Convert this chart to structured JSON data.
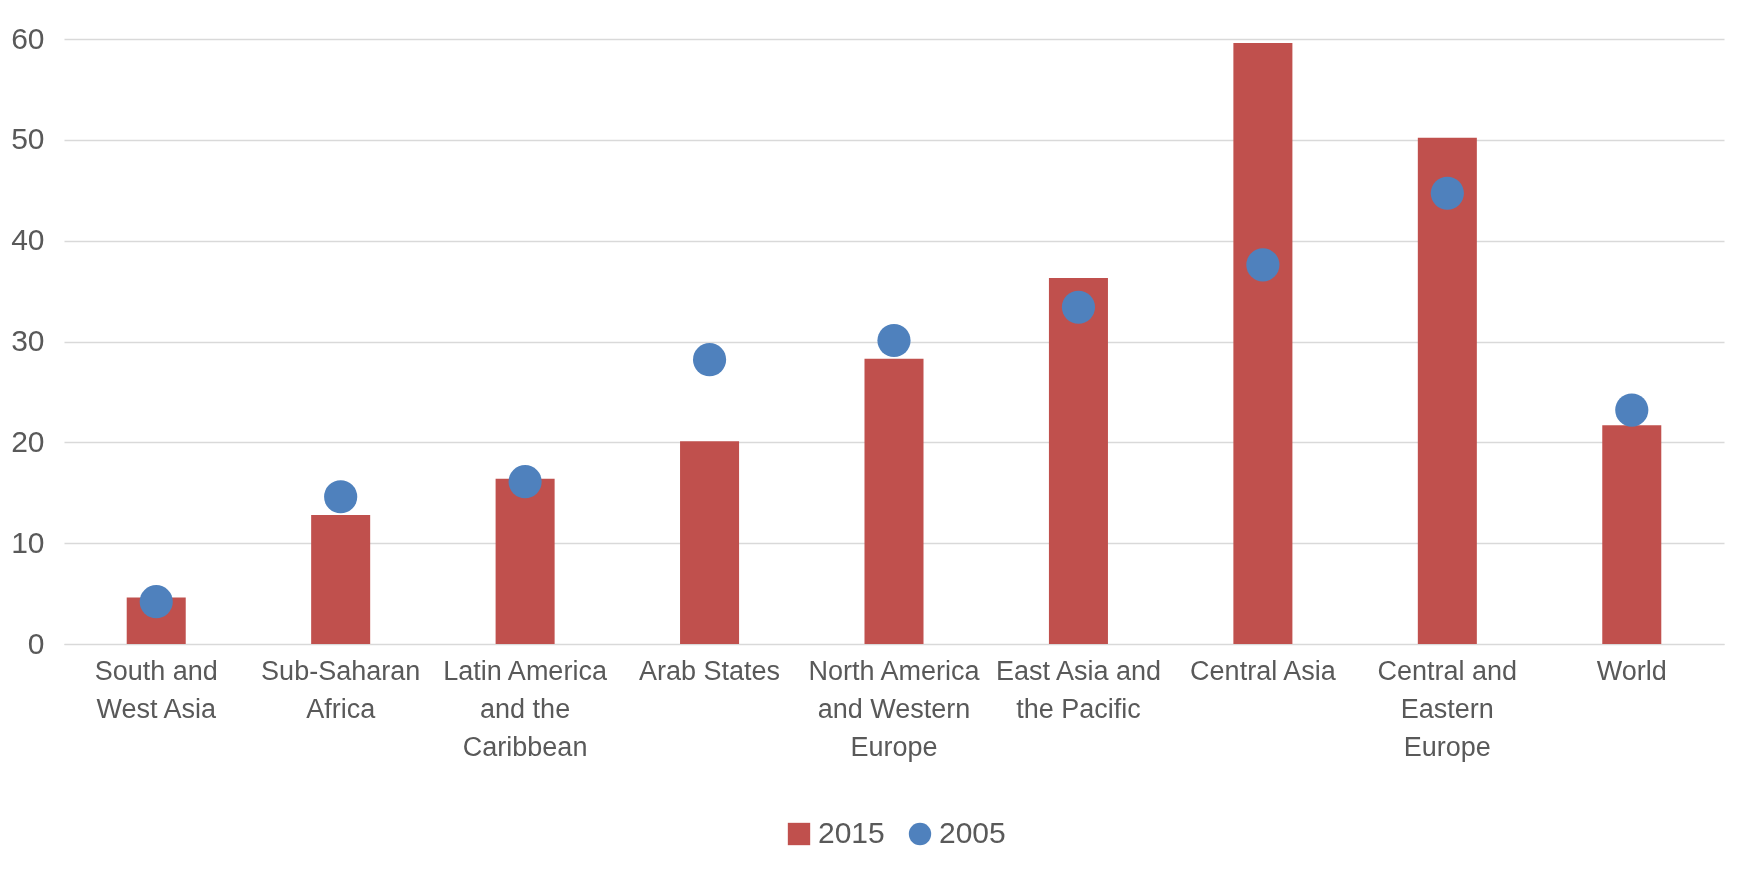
{
  "chart_data": {
    "type": "bar",
    "categories": [
      "South and West Asia",
      "Sub-Saharan Africa",
      "Latin America and the Caribbean",
      "Arab States",
      "North America and Western Europe",
      "East Asia and the Pacific",
      "Central Asia",
      "Central and Eastern Europe",
      "World"
    ],
    "series": [
      {
        "name": "2015",
        "color": "#c0504d",
        "values": [
          4.6,
          12.8,
          16.4,
          20.1,
          28.3,
          36.3,
          59.6,
          50.2,
          21.7
        ]
      },
      {
        "name": "2005",
        "type": "scatter",
        "color": "#4f81bd",
        "values": [
          4.2,
          14.6,
          16.1,
          28.2,
          30.1,
          33.4,
          37.6,
          44.7,
          23.2
        ]
      }
    ],
    "ylim": [
      0,
      60
    ],
    "yticks": [
      0,
      10,
      20,
      30,
      40,
      50,
      60
    ],
    "grid": "y",
    "legend": "bottom",
    "marker": "circle"
  }
}
